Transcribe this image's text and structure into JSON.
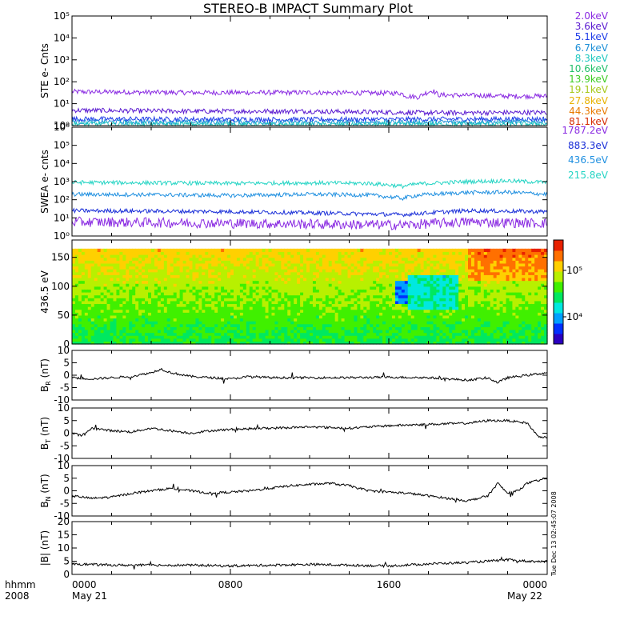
{
  "title": "STEREO-B IMPACT Summary Plot",
  "footer": {
    "time_label": "hhmm",
    "year_label": "2008",
    "date_start": "May 21",
    "date_end": "May 22",
    "x_ticks": [
      "0000",
      "0800",
      "1600",
      "0000"
    ]
  },
  "side_stamp": "Tue Dec 13 02:45:07 2008",
  "colors": {
    "ste": [
      "#8a2be2",
      "#5a1ad0",
      "#1f3ce8",
      "#1e90d8",
      "#20c8c0",
      "#22c06a",
      "#3ccc22",
      "#a6c81a",
      "#e8b200",
      "#e87a00",
      "#d62a00"
    ],
    "swea": [
      "#8a2be2",
      "#1a2fd8",
      "#1e8fe0",
      "#24d4c4"
    ],
    "colorbar": [
      "#2a00c0",
      "#0030ff",
      "#00a0ff",
      "#00e8e0",
      "#00e860",
      "#40f000",
      "#b8f000",
      "#ffd000",
      "#ff7000",
      "#e82000"
    ]
  },
  "chart_data": [
    {
      "type": "line",
      "ylabel": "STE e- Cnts",
      "yscale": "log",
      "ylim": [
        1,
        100000
      ],
      "y_ticks": [
        "10⁰",
        "10¹",
        "10²",
        "10³",
        "10⁴",
        "10⁵"
      ],
      "legend": [
        "2.0keV",
        "3.6keV",
        "5.1keV",
        "6.7keV",
        "8.3keV",
        "10.6keV",
        "13.9keV",
        "19.1keV",
        "27.8keV",
        "44.3keV",
        "81.1keV"
      ],
      "series": [
        {
          "name": "2.0keV",
          "x": [
            0,
            6,
            12,
            16.6,
            16.9,
            17.5,
            18.2,
            18.5,
            20,
            22,
            24
          ],
          "y": [
            35,
            32,
            32,
            30,
            22,
            20,
            40,
            25,
            24,
            22,
            22
          ]
        },
        {
          "name": "3.6keV",
          "x": [
            0,
            6,
            12,
            16.6,
            18,
            24
          ],
          "y": [
            5,
            4.5,
            4.5,
            4,
            3.8,
            4
          ]
        },
        {
          "name": "5.1keV",
          "x": [
            0,
            12,
            24
          ],
          "y": [
            2,
            1.9,
            2
          ]
        },
        {
          "name": "6.7keV",
          "x": [
            0,
            12,
            24
          ],
          "y": [
            1.5,
            1.4,
            1.5
          ]
        },
        {
          "name": "8.3keV",
          "x": [
            0,
            12,
            24
          ],
          "y": [
            1.2,
            1.1,
            1.2
          ]
        }
      ]
    },
    {
      "type": "line",
      "ylabel": "SWEA e- cnts",
      "yscale": "log",
      "ylim": [
        1,
        1000000
      ],
      "y_ticks": [
        "10⁰",
        "10¹",
        "10²",
        "10³",
        "10⁴",
        "10⁵",
        "10⁶"
      ],
      "legend": [
        "1787.2eV",
        "883.3eV",
        "436.5eV",
        "215.8eV"
      ],
      "series": [
        {
          "name": "215.8eV",
          "x": [
            0,
            4,
            8,
            12,
            15,
            16.7,
            17.5,
            20,
            22,
            24
          ],
          "y": [
            900,
            850,
            800,
            850,
            800,
            550,
            750,
            1000,
            1100,
            900
          ]
        },
        {
          "name": "436.5eV",
          "x": [
            0,
            4,
            8,
            12,
            15,
            16.7,
            17.5,
            20,
            22,
            24
          ],
          "y": [
            200,
            190,
            170,
            200,
            180,
            120,
            180,
            250,
            260,
            200
          ]
        },
        {
          "name": "883.3eV",
          "x": [
            0,
            8,
            16.7,
            20,
            24
          ],
          "y": [
            25,
            22,
            15,
            25,
            22
          ]
        },
        {
          "name": "1787.2eV",
          "x": [
            0,
            8,
            16.7,
            20,
            24
          ],
          "y": [
            6,
            5,
            4,
            6,
            5
          ]
        }
      ]
    },
    {
      "type": "heatmap",
      "ylabel": "436.5 eV",
      "ylim": [
        0,
        180
      ],
      "y_ticks": [
        "0",
        "50",
        "100",
        "150"
      ],
      "colorbar": {
        "scale": "log",
        "ticks": [
          "10⁴",
          "10⁵"
        ]
      },
      "description_regions": [
        {
          "x": [
            16.3,
            17.0
          ],
          "y": [
            70,
            110
          ],
          "level": "low"
        },
        {
          "x": [
            17.0,
            19.5
          ],
          "y": [
            60,
            120
          ],
          "level": "mid-low"
        },
        {
          "x": [
            20.0,
            24.0
          ],
          "y": [
            110,
            170
          ],
          "level": "high"
        }
      ]
    },
    {
      "type": "line",
      "ylabel": "BR (nT)",
      "label_main": "B",
      "label_sub": "R",
      "label_unit": "(nT)",
      "ylim": [
        -10,
        10
      ],
      "y_ticks": [
        "-10",
        "-5",
        "0",
        "5",
        "10"
      ],
      "series": [
        {
          "name": "BR",
          "x": [
            0,
            1,
            2,
            3,
            4,
            4.5,
            5,
            6,
            7,
            8,
            9,
            10,
            12,
            14,
            16,
            18,
            20,
            21,
            21.5,
            22,
            23,
            24
          ],
          "y": [
            -1,
            -1.5,
            -1,
            -0.5,
            1,
            2.5,
            1,
            -0.5,
            -1,
            -1.5,
            -0.5,
            -1,
            -1,
            -1,
            -0.8,
            -1,
            -2,
            -1,
            -3,
            -1,
            0,
            1
          ]
        }
      ]
    },
    {
      "type": "line",
      "ylabel": "BT (nT)",
      "label_main": "B",
      "label_sub": "T",
      "label_unit": "(nT)",
      "ylim": [
        -10,
        10
      ],
      "y_ticks": [
        "-10",
        "-5",
        "0",
        "5",
        "10"
      ],
      "series": [
        {
          "name": "BT",
          "x": [
            0,
            0.5,
            1,
            2,
            3,
            4,
            5,
            6,
            7,
            8,
            10,
            12,
            14,
            16,
            18,
            20,
            21,
            22,
            23,
            23.5,
            24
          ],
          "y": [
            0,
            -1,
            2,
            1,
            0.5,
            2,
            1,
            0,
            1,
            1.5,
            2,
            2.5,
            2,
            3,
            3.5,
            4,
            5,
            5,
            4,
            -1,
            -2
          ]
        }
      ]
    },
    {
      "type": "line",
      "ylabel": "BN (nT)",
      "label_main": "B",
      "label_sub": "N",
      "label_unit": "(nT)",
      "ylim": [
        -10,
        10
      ],
      "y_ticks": [
        "-10",
        "-5",
        "0",
        "5",
        "10"
      ],
      "series": [
        {
          "name": "BN",
          "x": [
            0,
            1,
            2,
            3,
            4,
            5,
            6,
            7,
            8,
            9,
            10,
            11,
            12,
            13,
            14,
            15,
            16,
            17,
            18,
            19,
            20,
            21,
            21.5,
            22,
            22.5,
            23,
            24
          ],
          "y": [
            -2,
            -3,
            -2.5,
            -1,
            0,
            1,
            0,
            -1,
            -0.5,
            0,
            1,
            2,
            2.5,
            3,
            2,
            0,
            -0.5,
            -1,
            -2,
            -3,
            -4,
            -2,
            3,
            -1,
            0,
            3,
            5
          ]
        }
      ]
    },
    {
      "type": "line",
      "ylabel": "|B| (nT)",
      "label_main": "|B|",
      "label_sub": "",
      "label_unit": "(nT)",
      "ylim": [
        0,
        20
      ],
      "y_ticks": [
        "0",
        "5",
        "10",
        "15",
        "20"
      ],
      "series": [
        {
          "name": "|B|",
          "x": [
            0,
            2,
            4,
            6,
            8,
            10,
            12,
            14,
            16,
            18,
            20,
            21,
            22,
            23,
            24
          ],
          "y": [
            4,
            3.5,
            3.5,
            3.5,
            3.2,
            3.5,
            3.8,
            3.5,
            3.2,
            4,
            4.5,
            5,
            5.5,
            5,
            4.8
          ]
        }
      ]
    }
  ]
}
